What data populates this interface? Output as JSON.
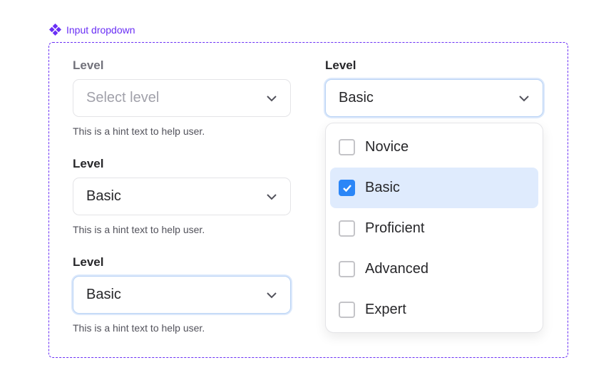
{
  "component_title": "Input dropdown",
  "fields": [
    {
      "label": "Level",
      "value": "",
      "placeholder": "Select level",
      "hint": "This is a hint text to help user.",
      "state": "disabled"
    },
    {
      "label": "Level",
      "value": "Basic",
      "hint": "This is a hint text to help user.",
      "state": "default"
    },
    {
      "label": "Level",
      "value": "Basic",
      "hint": "This is a hint text to help user.",
      "state": "focused"
    }
  ],
  "open_field": {
    "label": "Level",
    "value": "Basic",
    "options": [
      {
        "label": "Novice",
        "checked": false
      },
      {
        "label": "Basic",
        "checked": true
      },
      {
        "label": "Proficient",
        "checked": false
      },
      {
        "label": "Advanced",
        "checked": false
      },
      {
        "label": "Expert",
        "checked": false
      }
    ]
  },
  "colors": {
    "accent": "#6a2ff5",
    "checkbox": "#2b86f7",
    "selected_bg": "#dfebfd"
  }
}
